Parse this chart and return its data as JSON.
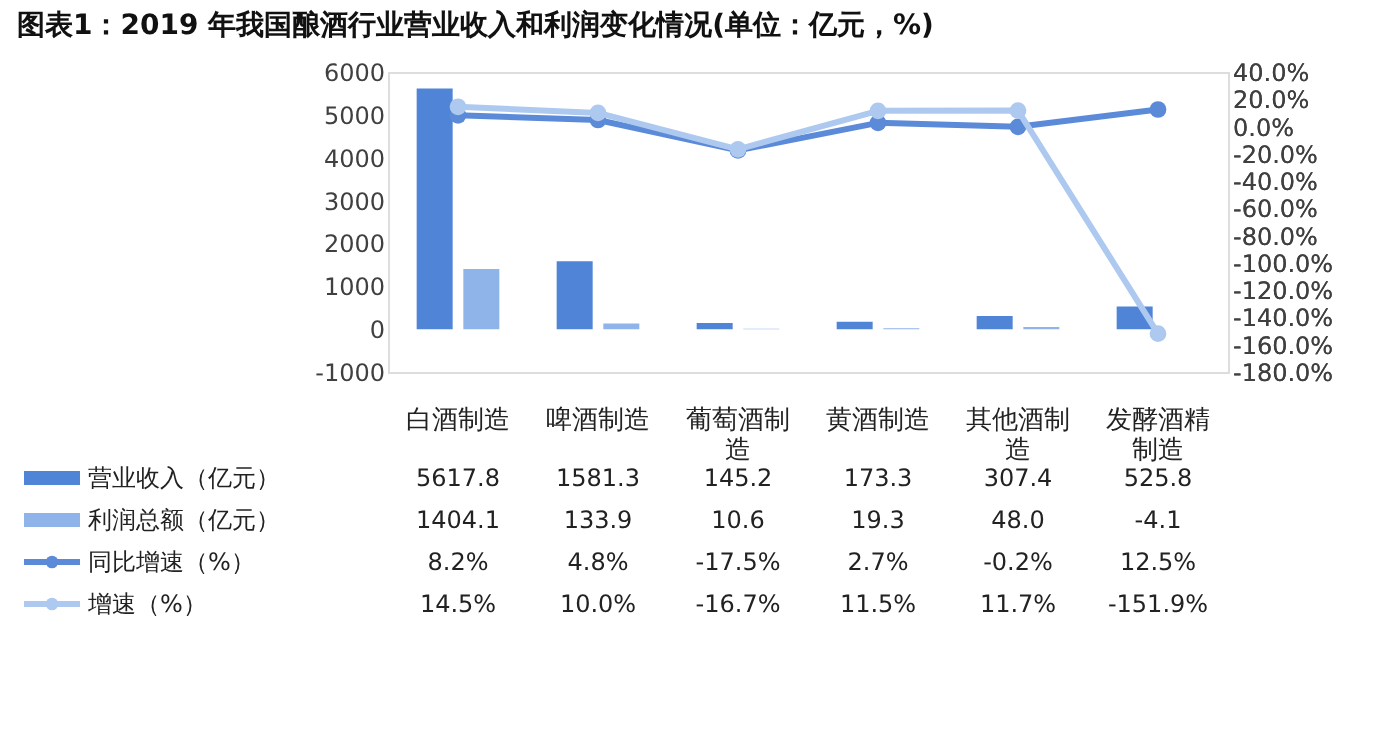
{
  "chart_data": {
    "type": "bar",
    "title": "图表1：2019 年我国酿酒行业营业收入和利润变化情况(单位：亿元，%)",
    "categories": [
      "白酒制造",
      "啤酒制造",
      "葡萄酒制造",
      "黄酒制造",
      "其他酒制造",
      "发酵酒精制造"
    ],
    "series": [
      {
        "name": "营业收入（亿元）",
        "color": "#4f84d6",
        "values": [
          5617.8,
          1581.3,
          145.2,
          173.3,
          307.4,
          525.8
        ],
        "value_labels": [
          "5617.8",
          "1581.3",
          "145.2",
          "173.3",
          "307.4",
          "525.8"
        ]
      },
      {
        "name": "利润总额（亿元）",
        "color": "#8fb4ea",
        "values": [
          1404.1,
          133.9,
          10.6,
          19.3,
          48.0,
          -4.1
        ],
        "value_labels": [
          "1404.1",
          "133.9",
          "10.6",
          "19.3",
          "48.0",
          "-4.1"
        ]
      },
      {
        "name": "同比增速（%）",
        "type": "line",
        "axis": "y2",
        "color": "#5b8ad8",
        "values": [
          8.2,
          4.8,
          -17.5,
          2.7,
          -0.2,
          12.5
        ],
        "value_labels": [
          "8.2%",
          "4.8%",
          "-17.5%",
          "2.7%",
          "-0.2%",
          "12.5%"
        ]
      },
      {
        "name": "增速（%）",
        "type": "line",
        "axis": "y2",
        "color": "#adc9f0",
        "values": [
          14.5,
          10.0,
          -16.7,
          11.5,
          11.7,
          -151.9
        ],
        "value_labels": [
          "14.5%",
          "10.0%",
          "-16.7%",
          "11.5%",
          "11.7%",
          "-151.9%"
        ]
      }
    ],
    "ylim": [
      -1000,
      6000
    ],
    "yticks": [
      -1000,
      0,
      1000,
      2000,
      3000,
      4000,
      5000,
      6000
    ],
    "y2lim": [
      -180,
      40
    ],
    "y2ticks": [
      {
        "value": 40,
        "label": "40.0%"
      },
      {
        "value": 20,
        "label": "20.0%"
      },
      {
        "value": 0,
        "label": "0.0%"
      },
      {
        "value": -20,
        "label": "-20.0%"
      },
      {
        "value": -40,
        "label": "-40.0%"
      },
      {
        "value": -60,
        "label": "-60.0%"
      },
      {
        "value": -80,
        "label": "-80.0%"
      },
      {
        "value": -100,
        "label": "-100.0%"
      },
      {
        "value": -120,
        "label": "-120.0%"
      },
      {
        "value": -140,
        "label": "-140.0%"
      },
      {
        "value": -160,
        "label": "-160.0%"
      },
      {
        "value": -180,
        "label": "-180.0%"
      }
    ],
    "marker": "circle",
    "line_style": "solid",
    "grid": false,
    "legend": "bottom left"
  }
}
